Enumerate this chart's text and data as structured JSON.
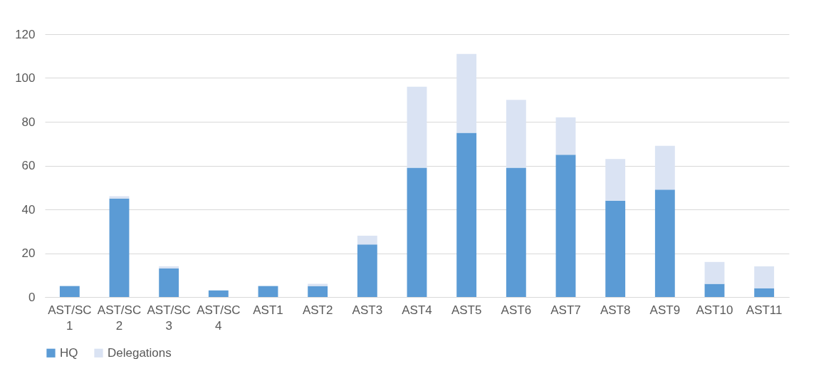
{
  "chart_data": {
    "type": "bar",
    "stacked": true,
    "categories": [
      "AST/SC 1",
      "AST/SC 2",
      "AST/SC 3",
      "AST/SC 4",
      "AST1",
      "AST2",
      "AST3",
      "AST4",
      "AST5",
      "AST6",
      "AST7",
      "AST8",
      "AST9",
      "AST10",
      "AST11"
    ],
    "series": [
      {
        "name": "HQ",
        "color": "#5b9bd5",
        "values": [
          5,
          45,
          13,
          3,
          5,
          5,
          24,
          59,
          75,
          59,
          65,
          44,
          49,
          6,
          4
        ]
      },
      {
        "name": "Delegations",
        "color": "#dae3f3",
        "values": [
          0,
          1,
          1,
          0,
          0,
          1,
          4,
          37,
          36,
          31,
          17,
          19,
          20,
          10,
          10
        ]
      }
    ],
    "ylim": [
      0,
      120
    ],
    "yticks": [
      0,
      20,
      40,
      60,
      80,
      100,
      120
    ],
    "grid": "y",
    "legend": "bottom"
  }
}
